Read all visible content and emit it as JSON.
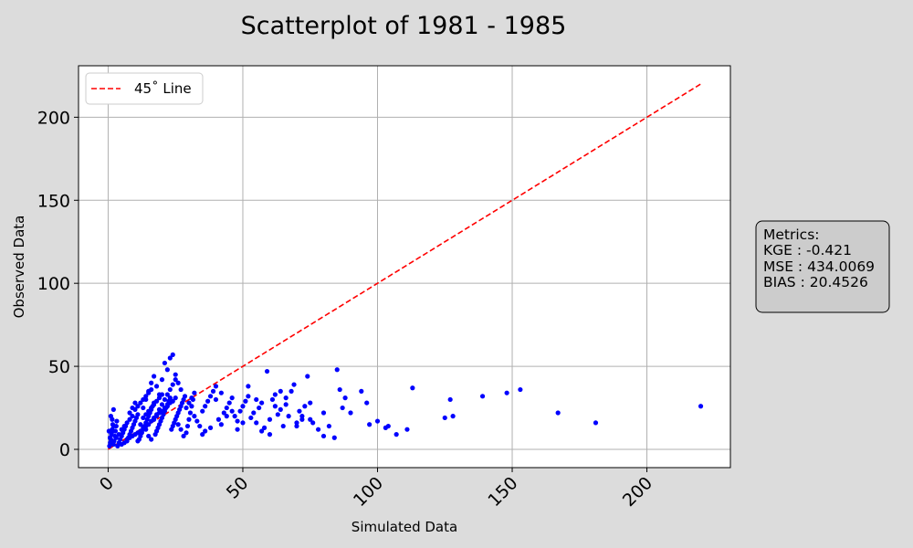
{
  "chart_data": {
    "type": "scatter",
    "title": "Scatterplot of 1981 - 1985",
    "xlabel": "Simulated Data",
    "ylabel": "Observed Data",
    "xlim": [
      -11,
      231
    ],
    "ylim": [
      -11,
      231
    ],
    "xticks": [
      0,
      50,
      100,
      150,
      200
    ],
    "yticks": [
      0,
      50,
      100,
      150,
      200
    ],
    "grid": true,
    "legend": {
      "position": "top-left",
      "entries": [
        "45˚ Line"
      ]
    },
    "colors": {
      "points": "#0000ff",
      "line": "#ff0000",
      "plot_bg": "#ffffff",
      "figure_bg": "#dcdcdc",
      "metrics_bg": "#cccccc"
    },
    "reference_line": {
      "label": "45˚ Line",
      "x": [
        0,
        220
      ],
      "y": [
        0,
        220
      ]
    },
    "metrics": {
      "heading": "Metrics:",
      "lines": [
        "KGE : -0.421",
        "MSE : 434.0069",
        "BIAS : 20.4526"
      ]
    },
    "points": [
      [
        0.5,
        2
      ],
      [
        0.8,
        4
      ],
      [
        1,
        6
      ],
      [
        1.2,
        9
      ],
      [
        1.5,
        12
      ],
      [
        1.7,
        15
      ],
      [
        2,
        3
      ],
      [
        2.2,
        5
      ],
      [
        2.5,
        8
      ],
      [
        2.7,
        11
      ],
      [
        3,
        14
      ],
      [
        3.2,
        17
      ],
      [
        1,
        20
      ],
      [
        2,
        24
      ],
      [
        0.7,
        7
      ],
      [
        1.3,
        10
      ],
      [
        3.5,
        2
      ],
      [
        4,
        4
      ],
      [
        4.5,
        6
      ],
      [
        5,
        8
      ],
      [
        5.5,
        10
      ],
      [
        6,
        12
      ],
      [
        6.5,
        14
      ],
      [
        7,
        5
      ],
      [
        7.5,
        7
      ],
      [
        8,
        9
      ],
      [
        8.5,
        11
      ],
      [
        9,
        13
      ],
      [
        9.5,
        15
      ],
      [
        10,
        17
      ],
      [
        10.5,
        19
      ],
      [
        11,
        21
      ],
      [
        11.5,
        6
      ],
      [
        12,
        8
      ],
      [
        12.5,
        10
      ],
      [
        13,
        12
      ],
      [
        13.5,
        14
      ],
      [
        14,
        16
      ],
      [
        14.5,
        18
      ],
      [
        15,
        20
      ],
      [
        15.5,
        22
      ],
      [
        16,
        24
      ],
      [
        16.5,
        26
      ],
      [
        17,
        28
      ],
      [
        17.5,
        9
      ],
      [
        18,
        11
      ],
      [
        18.5,
        13
      ],
      [
        19,
        15
      ],
      [
        19.5,
        17
      ],
      [
        20,
        19
      ],
      [
        20.5,
        21
      ],
      [
        21,
        23
      ],
      [
        21.5,
        25
      ],
      [
        22,
        27
      ],
      [
        22.5,
        29
      ],
      [
        23,
        31
      ],
      [
        23.5,
        12
      ],
      [
        24,
        14
      ],
      [
        24.5,
        16
      ],
      [
        25,
        18
      ],
      [
        25.5,
        20
      ],
      [
        26,
        22
      ],
      [
        26.5,
        24
      ],
      [
        27,
        26
      ],
      [
        27.5,
        28
      ],
      [
        28,
        30
      ],
      [
        28.5,
        32
      ],
      [
        29,
        10
      ],
      [
        29.5,
        14
      ],
      [
        30,
        18
      ],
      [
        30.5,
        22
      ],
      [
        31,
        26
      ],
      [
        31.5,
        30
      ],
      [
        32,
        34
      ],
      [
        8,
        22
      ],
      [
        9,
        25
      ],
      [
        10,
        28
      ],
      [
        11,
        5
      ],
      [
        12,
        15
      ],
      [
        13,
        25
      ],
      [
        14,
        30
      ],
      [
        15,
        35
      ],
      [
        16,
        40
      ],
      [
        17,
        44
      ],
      [
        18,
        38
      ],
      [
        19,
        33
      ],
      [
        20,
        42
      ],
      [
        21,
        52
      ],
      [
        22,
        48
      ],
      [
        23,
        55
      ],
      [
        24,
        57
      ],
      [
        25,
        45
      ],
      [
        26,
        40
      ],
      [
        27,
        36
      ],
      [
        14,
        12
      ],
      [
        15,
        8
      ],
      [
        16,
        6
      ],
      [
        17,
        18
      ],
      [
        18,
        21
      ],
      [
        19,
        24
      ],
      [
        20,
        27
      ],
      [
        21,
        30
      ],
      [
        22,
        33
      ],
      [
        23,
        36
      ],
      [
        24,
        39
      ],
      [
        25,
        42
      ],
      [
        26,
        15
      ],
      [
        27,
        12
      ],
      [
        28,
        8
      ],
      [
        29,
        25
      ],
      [
        30,
        28
      ],
      [
        31,
        31
      ],
      [
        32,
        20
      ],
      [
        33,
        17
      ],
      [
        34,
        14
      ],
      [
        35,
        23
      ],
      [
        36,
        26
      ],
      [
        37,
        29
      ],
      [
        38,
        32
      ],
      [
        39,
        35
      ],
      [
        40,
        38
      ],
      [
        41,
        18
      ],
      [
        42,
        15
      ],
      [
        43,
        22
      ],
      [
        44,
        25
      ],
      [
        45,
        28
      ],
      [
        46,
        31
      ],
      [
        47,
        20
      ],
      [
        48,
        17
      ],
      [
        49,
        23
      ],
      [
        50,
        26
      ],
      [
        51,
        29
      ],
      [
        52,
        32
      ],
      [
        53,
        19
      ],
      [
        54,
        22
      ],
      [
        55,
        16
      ],
      [
        56,
        25
      ],
      [
        57,
        28
      ],
      [
        58,
        13
      ],
      [
        59,
        47
      ],
      [
        60,
        18
      ],
      [
        61,
        30
      ],
      [
        62,
        33
      ],
      [
        63,
        21
      ],
      [
        64,
        24
      ],
      [
        65,
        14
      ],
      [
        66,
        27
      ],
      [
        67,
        20
      ],
      [
        68,
        35
      ],
      [
        69,
        39
      ],
      [
        70,
        16
      ],
      [
        71,
        23
      ],
      [
        72,
        18
      ],
      [
        73,
        26
      ],
      [
        74,
        44
      ],
      [
        75,
        28
      ],
      [
        76,
        16
      ],
      [
        78,
        12
      ],
      [
        80,
        8
      ],
      [
        82,
        14
      ],
      [
        84,
        7
      ],
      [
        85,
        48
      ],
      [
        86,
        36
      ],
      [
        87,
        25
      ],
      [
        88,
        31
      ],
      [
        90,
        22
      ],
      [
        94,
        35
      ],
      [
        96,
        28
      ],
      [
        97,
        15
      ],
      [
        100,
        17
      ],
      [
        103,
        13
      ],
      [
        104,
        14
      ],
      [
        107,
        9
      ],
      [
        111,
        12
      ],
      [
        113,
        37
      ],
      [
        125,
        19
      ],
      [
        127,
        30
      ],
      [
        128,
        20
      ],
      [
        139,
        32
      ],
      [
        148,
        34
      ],
      [
        153,
        36
      ],
      [
        167,
        22
      ],
      [
        181,
        16
      ],
      [
        220,
        26
      ],
      [
        5,
        3
      ],
      [
        6,
        4
      ],
      [
        7,
        6
      ],
      [
        8,
        7
      ],
      [
        9,
        8
      ],
      [
        10,
        9
      ],
      [
        11,
        10
      ],
      [
        12,
        11
      ],
      [
        13,
        13
      ],
      [
        14,
        14
      ],
      [
        15,
        15
      ],
      [
        16,
        17
      ],
      [
        17,
        19
      ],
      [
        18,
        20
      ],
      [
        19,
        22
      ],
      [
        20,
        23
      ],
      [
        21,
        25
      ],
      [
        22,
        26
      ],
      [
        23,
        28
      ],
      [
        24,
        29
      ],
      [
        25,
        31
      ],
      [
        13,
        19
      ],
      [
        14,
        21
      ],
      [
        15,
        23
      ],
      [
        16,
        25
      ],
      [
        17,
        27
      ],
      [
        18,
        29
      ],
      [
        19,
        31
      ],
      [
        20,
        33
      ],
      [
        10,
        24
      ],
      [
        11,
        26
      ],
      [
        12,
        28
      ],
      [
        13,
        30
      ],
      [
        14,
        32
      ],
      [
        15,
        34
      ],
      [
        16,
        36
      ],
      [
        5,
        12
      ],
      [
        6,
        14
      ],
      [
        7,
        16
      ],
      [
        8,
        18
      ],
      [
        9,
        20
      ],
      [
        4,
        9
      ],
      [
        3,
        7
      ],
      [
        2,
        14
      ],
      [
        1.5,
        18
      ],
      [
        0.3,
        11
      ],
      [
        35,
        9
      ],
      [
        36,
        11
      ],
      [
        38,
        13
      ],
      [
        40,
        30
      ],
      [
        42,
        34
      ],
      [
        44,
        20
      ],
      [
        46,
        23
      ],
      [
        48,
        12
      ],
      [
        50,
        16
      ],
      [
        52,
        38
      ],
      [
        55,
        30
      ],
      [
        57,
        11
      ],
      [
        60,
        9
      ],
      [
        62,
        26
      ],
      [
        64,
        35
      ],
      [
        66,
        31
      ],
      [
        70,
        14
      ],
      [
        72,
        20
      ],
      [
        75,
        18
      ],
      [
        80,
        22
      ]
    ]
  }
}
